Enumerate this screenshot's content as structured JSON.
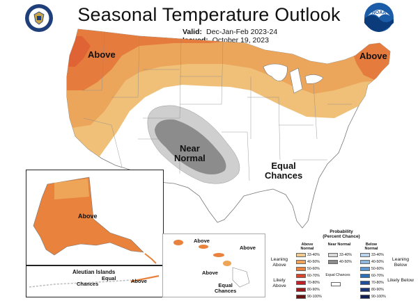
{
  "title": "Seasonal Temperature Outlook",
  "valid": {
    "label": "Valid:",
    "value": "Dec-Jan-Feb 2023-24"
  },
  "issued": {
    "label": "Issued:",
    "value": "October 19, 2023"
  },
  "logos": {
    "left": "department-of-commerce-seal",
    "right": "noaa-logo",
    "right_text": "NOAA"
  },
  "map_labels": {
    "above_west": "Above",
    "above_northeast": "Above",
    "near_normal_1": "Near",
    "near_normal_2": "Normal",
    "equal_1": "Equal",
    "equal_2": "Chances"
  },
  "alaska": {
    "above": "Above",
    "aleutian": "Aleutian Islands",
    "aleutian_equal_1": "Equal",
    "aleutian_equal_2": "Chances",
    "aleutian_above": "Above"
  },
  "hawaii": {
    "above_1": "Above",
    "above_2": "Above",
    "above_3": "Above",
    "equal_1": "Equal",
    "equal_2": "Chances"
  },
  "legend": {
    "title_1": "Probability",
    "title_2": "(Percent Chance)",
    "col_above": "Above Normal",
    "col_near": "Near Normal",
    "col_below": "Below Normal",
    "leaning_above": "Leaning Above",
    "likely_above": "Likely Above",
    "leaning_below": "Leaning Below",
    "likely_below": "Likely Below",
    "equal_chances": "Equal Chances",
    "above_bins": [
      "33-40%",
      "40-50%",
      "50-60%",
      "60-70%",
      "70-80%",
      "80-90%",
      "90-100%"
    ],
    "near_bins": [
      "33-40%",
      "40-50%"
    ],
    "below_bins": [
      "33-40%",
      "40-50%",
      "50-60%",
      "60-70%",
      "70-80%",
      "80-90%",
      "90-100%"
    ],
    "above_colors": [
      "#f2c98f",
      "#eea558",
      "#e8823c",
      "#d9452b",
      "#c22027",
      "#9a1b1e",
      "#6b1216"
    ],
    "near_colors": [
      "#d9d9d9",
      "#8c8c8c"
    ],
    "below_colors": [
      "#b9d4ec",
      "#8fb8df",
      "#5d97cf",
      "#2c6fb6",
      "#1f4f9a",
      "#1a3478",
      "#121f55"
    ]
  }
}
